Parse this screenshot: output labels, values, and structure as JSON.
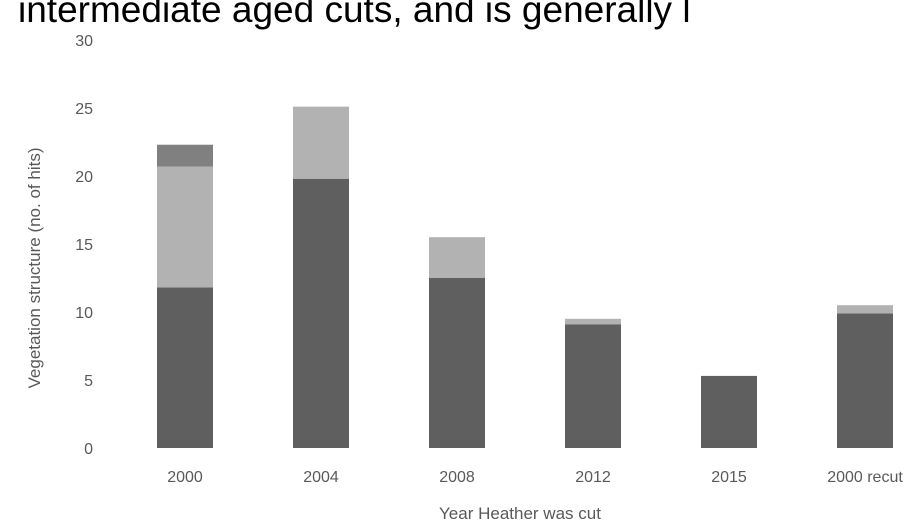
{
  "title": "intermediate aged cuts, and is generally l",
  "chart_data": {
    "type": "bar",
    "stacked": true,
    "categories": [
      "2000",
      "2004",
      "2008",
      "2012",
      "2015",
      "2000 recut"
    ],
    "series": [
      {
        "color": "#5f5f5f",
        "values": [
          11.8,
          19.8,
          12.5,
          9.1,
          5.3,
          9.9
        ]
      },
      {
        "color": "#b2b2b2",
        "values": [
          8.9,
          5.3,
          3.0,
          0.4,
          0.0,
          0.6
        ]
      },
      {
        "color": "#808080",
        "values": [
          1.6,
          0.0,
          0.0,
          0.0,
          0.0,
          0.0
        ]
      }
    ],
    "yticks": [
      "0",
      "5",
      "10",
      "15",
      "20",
      "25",
      "30"
    ],
    "ylim": [
      0,
      30
    ],
    "xlabel": "Year Heather was cut",
    "ylabel": "Vegetation structure (no. of hits)",
    "grid": false,
    "legend": "none"
  }
}
